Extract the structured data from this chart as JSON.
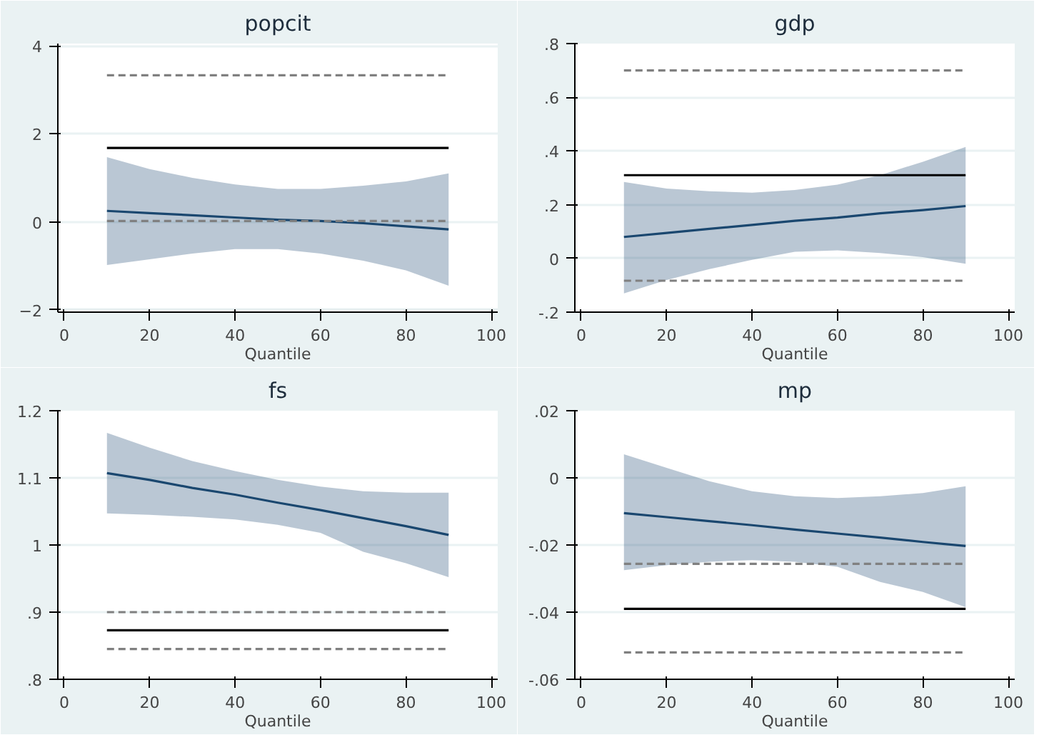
{
  "chart_data": [
    {
      "type": "line",
      "title": "popcit",
      "xlabel": "Quantile",
      "xlim": [
        -1.5,
        101.5
      ],
      "xticks": [
        0,
        20,
        40,
        60,
        80,
        100
      ],
      "ylim": [
        -2.05,
        4.05
      ],
      "yticks": [
        -2,
        0,
        2,
        4
      ],
      "grid": "y",
      "series": [
        {
          "x": [
            10,
            20,
            30,
            40,
            50,
            60,
            70,
            80,
            90
          ],
          "values": [
            0.25,
            0.2,
            0.15,
            0.1,
            0.05,
            0.02,
            -0.03,
            -0.1,
            -0.17
          ],
          "lower": [
            -0.98,
            -0.85,
            -0.72,
            -0.62,
            -0.62,
            -0.72,
            -0.88,
            -1.1,
            -1.45
          ],
          "upper": [
            1.47,
            1.2,
            1.0,
            0.85,
            0.75,
            0.75,
            0.82,
            0.92,
            1.1
          ],
          "color": "#1a476f",
          "line_style": "solid"
        },
        {
          "x": [
            10,
            90
          ],
          "values": [
            3.33,
            3.33
          ],
          "color": "#808080",
          "line_style": "dashed"
        },
        {
          "x": [
            10,
            90
          ],
          "values": [
            1.68,
            1.68
          ],
          "color": "#000000",
          "line_style": "solid"
        },
        {
          "x": [
            10,
            90
          ],
          "values": [
            0.02,
            0.02
          ],
          "color": "#808080",
          "line_style": "dashed"
        }
      ]
    },
    {
      "type": "line",
      "title": "gdp",
      "xlabel": "Quantile",
      "xlim": [
        -1.5,
        101.5
      ],
      "xticks": [
        0,
        20,
        40,
        60,
        80,
        100
      ],
      "ylim": [
        -0.2,
        0.8
      ],
      "yticks": [
        {
          "value": -0.2,
          "label": "-.2"
        },
        0,
        {
          "value": 0.2,
          "label": ".2"
        },
        {
          "value": 0.4,
          "label": ".4"
        },
        {
          "value": 0.6,
          "label": ".6"
        },
        {
          "value": 0.8,
          "label": ".8"
        }
      ],
      "grid": "y",
      "series": [
        {
          "x": [
            10,
            20,
            30,
            40,
            50,
            60,
            70,
            80,
            90
          ],
          "values": [
            0.08,
            0.095,
            0.11,
            0.125,
            0.14,
            0.152,
            0.168,
            0.18,
            0.195
          ],
          "lower": [
            -0.13,
            -0.08,
            -0.04,
            -0.005,
            0.025,
            0.03,
            0.02,
            0.005,
            -0.02
          ],
          "upper": [
            0.285,
            0.26,
            0.25,
            0.245,
            0.255,
            0.275,
            0.31,
            0.36,
            0.415
          ],
          "color": "#1a476f",
          "line_style": "solid"
        },
        {
          "x": [
            10,
            90
          ],
          "values": [
            0.7,
            0.7
          ],
          "color": "#808080",
          "line_style": "dashed"
        },
        {
          "x": [
            10,
            90
          ],
          "values": [
            0.31,
            0.31
          ],
          "color": "#000000",
          "line_style": "solid"
        },
        {
          "x": [
            10,
            90
          ],
          "values": [
            -0.083,
            -0.083
          ],
          "color": "#808080",
          "line_style": "dashed"
        }
      ]
    },
    {
      "type": "line",
      "title": "fs",
      "xlabel": "Quantile",
      "xlim": [
        -1.5,
        101.5
      ],
      "xticks": [
        0,
        20,
        40,
        60,
        80,
        100
      ],
      "ylim": [
        0.8,
        1.2
      ],
      "yticks": [
        {
          "value": 0.8,
          "label": ".8"
        },
        {
          "value": 0.9,
          "label": ".9"
        },
        1,
        1.1,
        1.2
      ],
      "grid": "y",
      "series": [
        {
          "x": [
            10,
            20,
            30,
            40,
            50,
            60,
            70,
            80,
            90
          ],
          "values": [
            1.107,
            1.097,
            1.085,
            1.075,
            1.063,
            1.052,
            1.04,
            1.028,
            1.015
          ],
          "lower": [
            1.047,
            1.045,
            1.042,
            1.038,
            1.03,
            1.018,
            0.99,
            0.973,
            0.952
          ],
          "upper": [
            1.167,
            1.145,
            1.125,
            1.11,
            1.097,
            1.087,
            1.08,
            1.078,
            1.078
          ],
          "color": "#1a476f",
          "line_style": "solid"
        },
        {
          "x": [
            10,
            90
          ],
          "values": [
            0.9,
            0.9
          ],
          "color": "#808080",
          "line_style": "dashed"
        },
        {
          "x": [
            10,
            90
          ],
          "values": [
            0.873,
            0.873
          ],
          "color": "#000000",
          "line_style": "solid"
        },
        {
          "x": [
            10,
            90
          ],
          "values": [
            0.845,
            0.845
          ],
          "color": "#808080",
          "line_style": "dashed"
        }
      ]
    },
    {
      "type": "line",
      "title": "mp",
      "xlabel": "Quantile",
      "xlim": [
        -1.5,
        101.5
      ],
      "xticks": [
        0,
        20,
        40,
        60,
        80,
        100
      ],
      "ylim": [
        -0.06,
        0.02
      ],
      "yticks": [
        {
          "value": -0.06,
          "label": "-.06"
        },
        {
          "value": -0.04,
          "label": "-.04"
        },
        {
          "value": -0.02,
          "label": "-.02"
        },
        0,
        {
          "value": 0.02,
          "label": ".02"
        }
      ],
      "grid": "y",
      "series": [
        {
          "x": [
            10,
            20,
            30,
            40,
            50,
            60,
            70,
            80,
            90
          ],
          "values": [
            -0.0105,
            -0.0117,
            -0.0129,
            -0.0141,
            -0.0154,
            -0.0166,
            -0.0178,
            -0.0191,
            -0.0203
          ],
          "lower": [
            -0.0275,
            -0.026,
            -0.025,
            -0.0245,
            -0.025,
            -0.0265,
            -0.031,
            -0.034,
            -0.0385
          ],
          "upper": [
            0.007,
            0.003,
            -0.001,
            -0.004,
            -0.0055,
            -0.006,
            -0.0055,
            -0.0045,
            -0.0025
          ],
          "color": "#1a476f",
          "line_style": "solid"
        },
        {
          "x": [
            10,
            90
          ],
          "values": [
            -0.0256,
            -0.0256
          ],
          "color": "#808080",
          "line_style": "dashed"
        },
        {
          "x": [
            10,
            90
          ],
          "values": [
            -0.039,
            -0.039
          ],
          "color": "#000000",
          "line_style": "solid"
        },
        {
          "x": [
            10,
            90
          ],
          "values": [
            -0.052,
            -0.052
          ],
          "color": "#808080",
          "line_style": "dashed"
        }
      ]
    }
  ]
}
